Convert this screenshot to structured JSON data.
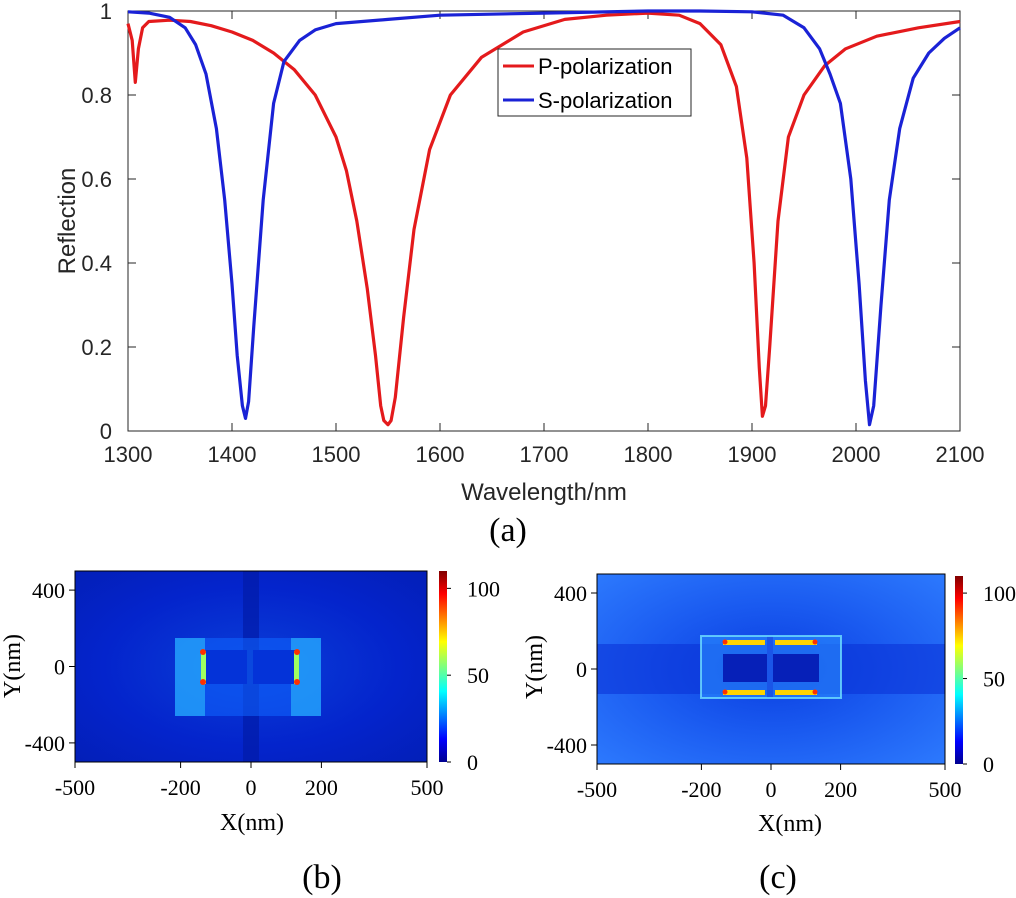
{
  "colors": {
    "p_series": "#e41a1c",
    "s_series": "#1a22d6",
    "map_low": "#00008f",
    "map_high": "#800000"
  },
  "panel_labels": [
    "(a)",
    "(b)",
    "(c)"
  ],
  "chart_data": [
    {
      "type": "line",
      "panel": "(a)",
      "title": "",
      "xlabel": "Wavelength/nm",
      "ylabel": "Reflection",
      "xlim": [
        1300,
        2100
      ],
      "ylim": [
        0,
        1
      ],
      "xticks": [
        1300,
        1400,
        1500,
        1600,
        1700,
        1800,
        1900,
        2000,
        2100
      ],
      "yticks": [
        0,
        0.2,
        0.4,
        0.6,
        0.8,
        1
      ],
      "ytick_labels": [
        "0",
        "0.2",
        "0.4",
        "0.6",
        "0.8",
        "1"
      ],
      "grid": false,
      "legend_position": "top-center",
      "series": [
        {
          "name": "P-polarization",
          "color": "#e41a1c",
          "points": [
            [
              1300,
              0.97
            ],
            [
              1304,
              0.93
            ],
            [
              1307,
              0.83
            ],
            [
              1310,
              0.91
            ],
            [
              1314,
              0.96
            ],
            [
              1320,
              0.975
            ],
            [
              1340,
              0.978
            ],
            [
              1360,
              0.975
            ],
            [
              1380,
              0.965
            ],
            [
              1400,
              0.95
            ],
            [
              1420,
              0.93
            ],
            [
              1440,
              0.9
            ],
            [
              1460,
              0.86
            ],
            [
              1480,
              0.8
            ],
            [
              1500,
              0.7
            ],
            [
              1510,
              0.62
            ],
            [
              1520,
              0.5
            ],
            [
              1530,
              0.34
            ],
            [
              1538,
              0.18
            ],
            [
              1543,
              0.06
            ],
            [
              1546,
              0.025
            ],
            [
              1550,
              0.015
            ],
            [
              1553,
              0.025
            ],
            [
              1557,
              0.08
            ],
            [
              1565,
              0.27
            ],
            [
              1575,
              0.48
            ],
            [
              1590,
              0.67
            ],
            [
              1610,
              0.8
            ],
            [
              1640,
              0.89
            ],
            [
              1680,
              0.95
            ],
            [
              1720,
              0.98
            ],
            [
              1760,
              0.99
            ],
            [
              1800,
              0.995
            ],
            [
              1830,
              0.99
            ],
            [
              1850,
              0.97
            ],
            [
              1870,
              0.92
            ],
            [
              1885,
              0.82
            ],
            [
              1895,
              0.65
            ],
            [
              1902,
              0.4
            ],
            [
              1907,
              0.15
            ],
            [
              1910,
              0.035
            ],
            [
              1913,
              0.06
            ],
            [
              1917,
              0.2
            ],
            [
              1925,
              0.5
            ],
            [
              1935,
              0.7
            ],
            [
              1950,
              0.8
            ],
            [
              1970,
              0.87
            ],
            [
              1990,
              0.91
            ],
            [
              2020,
              0.94
            ],
            [
              2060,
              0.96
            ],
            [
              2100,
              0.975
            ]
          ]
        },
        {
          "name": "S-polarization",
          "color": "#1a22d6",
          "points": [
            [
              1300,
              0.998
            ],
            [
              1320,
              0.995
            ],
            [
              1340,
              0.985
            ],
            [
              1355,
              0.96
            ],
            [
              1365,
              0.92
            ],
            [
              1375,
              0.85
            ],
            [
              1385,
              0.72
            ],
            [
              1393,
              0.55
            ],
            [
              1400,
              0.35
            ],
            [
              1405,
              0.18
            ],
            [
              1410,
              0.06
            ],
            [
              1413,
              0.03
            ],
            [
              1416,
              0.07
            ],
            [
              1421,
              0.25
            ],
            [
              1430,
              0.55
            ],
            [
              1440,
              0.78
            ],
            [
              1450,
              0.88
            ],
            [
              1465,
              0.93
            ],
            [
              1480,
              0.955
            ],
            [
              1500,
              0.97
            ],
            [
              1550,
              0.98
            ],
            [
              1600,
              0.99
            ],
            [
              1700,
              0.995
            ],
            [
              1800,
              1.0
            ],
            [
              1850,
              1.0
            ],
            [
              1900,
              0.998
            ],
            [
              1930,
              0.99
            ],
            [
              1950,
              0.96
            ],
            [
              1965,
              0.91
            ],
            [
              1975,
              0.85
            ],
            [
              1985,
              0.78
            ],
            [
              1995,
              0.6
            ],
            [
              2003,
              0.35
            ],
            [
              2009,
              0.12
            ],
            [
              2013,
              0.015
            ],
            [
              2017,
              0.06
            ],
            [
              2024,
              0.3
            ],
            [
              2032,
              0.55
            ],
            [
              2042,
              0.72
            ],
            [
              2055,
              0.84
            ],
            [
              2070,
              0.9
            ],
            [
              2085,
              0.935
            ],
            [
              2100,
              0.96
            ]
          ]
        }
      ]
    },
    {
      "type": "heatmap",
      "panel": "(b)",
      "xlabel": "X(nm)",
      "ylabel": "Y(nm)",
      "xlim": [
        -500,
        500
      ],
      "ylim": [
        -500,
        500
      ],
      "xticks": [
        -500,
        -200,
        0,
        200,
        500
      ],
      "yticks": [
        400,
        0,
        -400
      ],
      "colorbar_ticks": [
        100,
        50,
        0
      ],
      "colorbar_range": [
        0,
        110
      ]
    },
    {
      "type": "heatmap",
      "panel": "(c)",
      "xlabel": "X(nm)",
      "ylabel": "Y(nm)",
      "xlim": [
        -500,
        500
      ],
      "ylim": [
        -500,
        500
      ],
      "xticks": [
        -500,
        -200,
        0,
        200,
        500
      ],
      "yticks": [
        400,
        0,
        -400
      ],
      "colorbar_ticks": [
        100,
        50,
        0
      ],
      "colorbar_range": [
        0,
        110
      ]
    }
  ]
}
